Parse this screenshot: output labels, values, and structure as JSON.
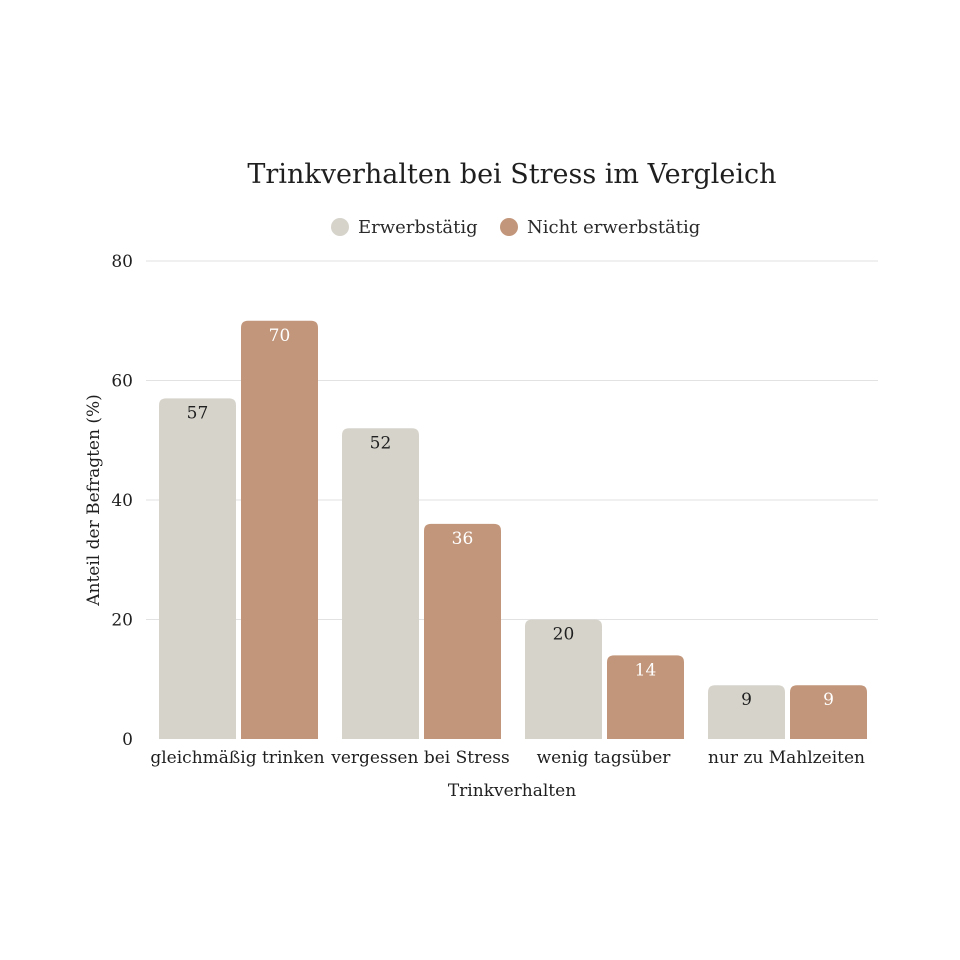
{
  "chart_data": {
    "type": "bar",
    "title": "Trinkverhalten bei Stress im Vergleich",
    "xlabel": "Trinkverhalten",
    "ylabel": "Anteil der Befragten (%)",
    "ylim": [
      0,
      80
    ],
    "yticks": [
      0,
      20,
      40,
      60,
      80
    ],
    "grid": true,
    "legend_position": "top",
    "categories": [
      "gleichmäßig trinken",
      "vergessen bei Stress",
      "wenig tagsüber",
      "nur zu Mahlzeiten"
    ],
    "series": [
      {
        "name": "Erwerbstätig",
        "color": "#d6d3cb",
        "label_color": "#1f1f1f",
        "values": [
          57,
          52,
          20,
          9
        ]
      },
      {
        "name": "Nicht erwerbstätig",
        "color": "#c2967a",
        "label_color": "#ffffff",
        "values": [
          70,
          36,
          14,
          9
        ]
      }
    ]
  }
}
